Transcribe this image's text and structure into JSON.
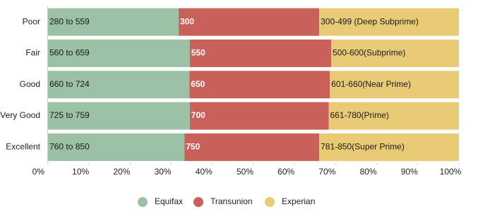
{
  "chart_data": {
    "type": "stacked_barh",
    "categories": [
      "Poor",
      "Fair",
      "Good",
      "Very Good",
      "Excellent"
    ],
    "series": [
      {
        "name": "Equifax",
        "color": "#9cc1a5",
        "label_color": "#1a1a1a",
        "label_bold": false,
        "values": [
          31.8,
          34.5,
          34.4,
          34.5,
          33.2
        ],
        "segment_labels": [
          "280 to 559",
          "560 to 659",
          "660 to 724",
          "725 to 759",
          "760 to 850"
        ]
      },
      {
        "name": "Transunion",
        "color": "#c9605a",
        "label_color": "#ffffff",
        "label_bold": true,
        "values": [
          34.2,
          34.4,
          34.2,
          33.8,
          32.8
        ],
        "segment_labels": [
          "300",
          "550",
          "650",
          "700",
          "750"
        ]
      },
      {
        "name": "Experian",
        "color": "#e8cb74",
        "label_color": "#1a1a1a",
        "label_bold": false,
        "values": [
          34.0,
          31.1,
          31.4,
          31.7,
          34.0
        ],
        "segment_labels": [
          "300-499 (Deep Subprime)",
          "500-600(Subprime)",
          "601-660(Near Prime)",
          "661-780(Prime)",
          "781-850(Super Prime)"
        ]
      }
    ],
    "xlim": [
      0,
      100
    ],
    "xticks": [
      {
        "value": 0,
        "label": "0%"
      },
      {
        "value": 10,
        "label": "10%"
      },
      {
        "value": 20,
        "label": "20%"
      },
      {
        "value": 30,
        "label": "30%"
      },
      {
        "value": 40,
        "label": "40%"
      },
      {
        "value": 50,
        "label": "50%"
      },
      {
        "value": 60,
        "label": "60%"
      },
      {
        "value": 70,
        "label": "70%"
      },
      {
        "value": 80,
        "label": "80%"
      },
      {
        "value": 90,
        "label": "90%"
      },
      {
        "value": 100,
        "label": "100%"
      }
    ],
    "legend": "bottom"
  }
}
